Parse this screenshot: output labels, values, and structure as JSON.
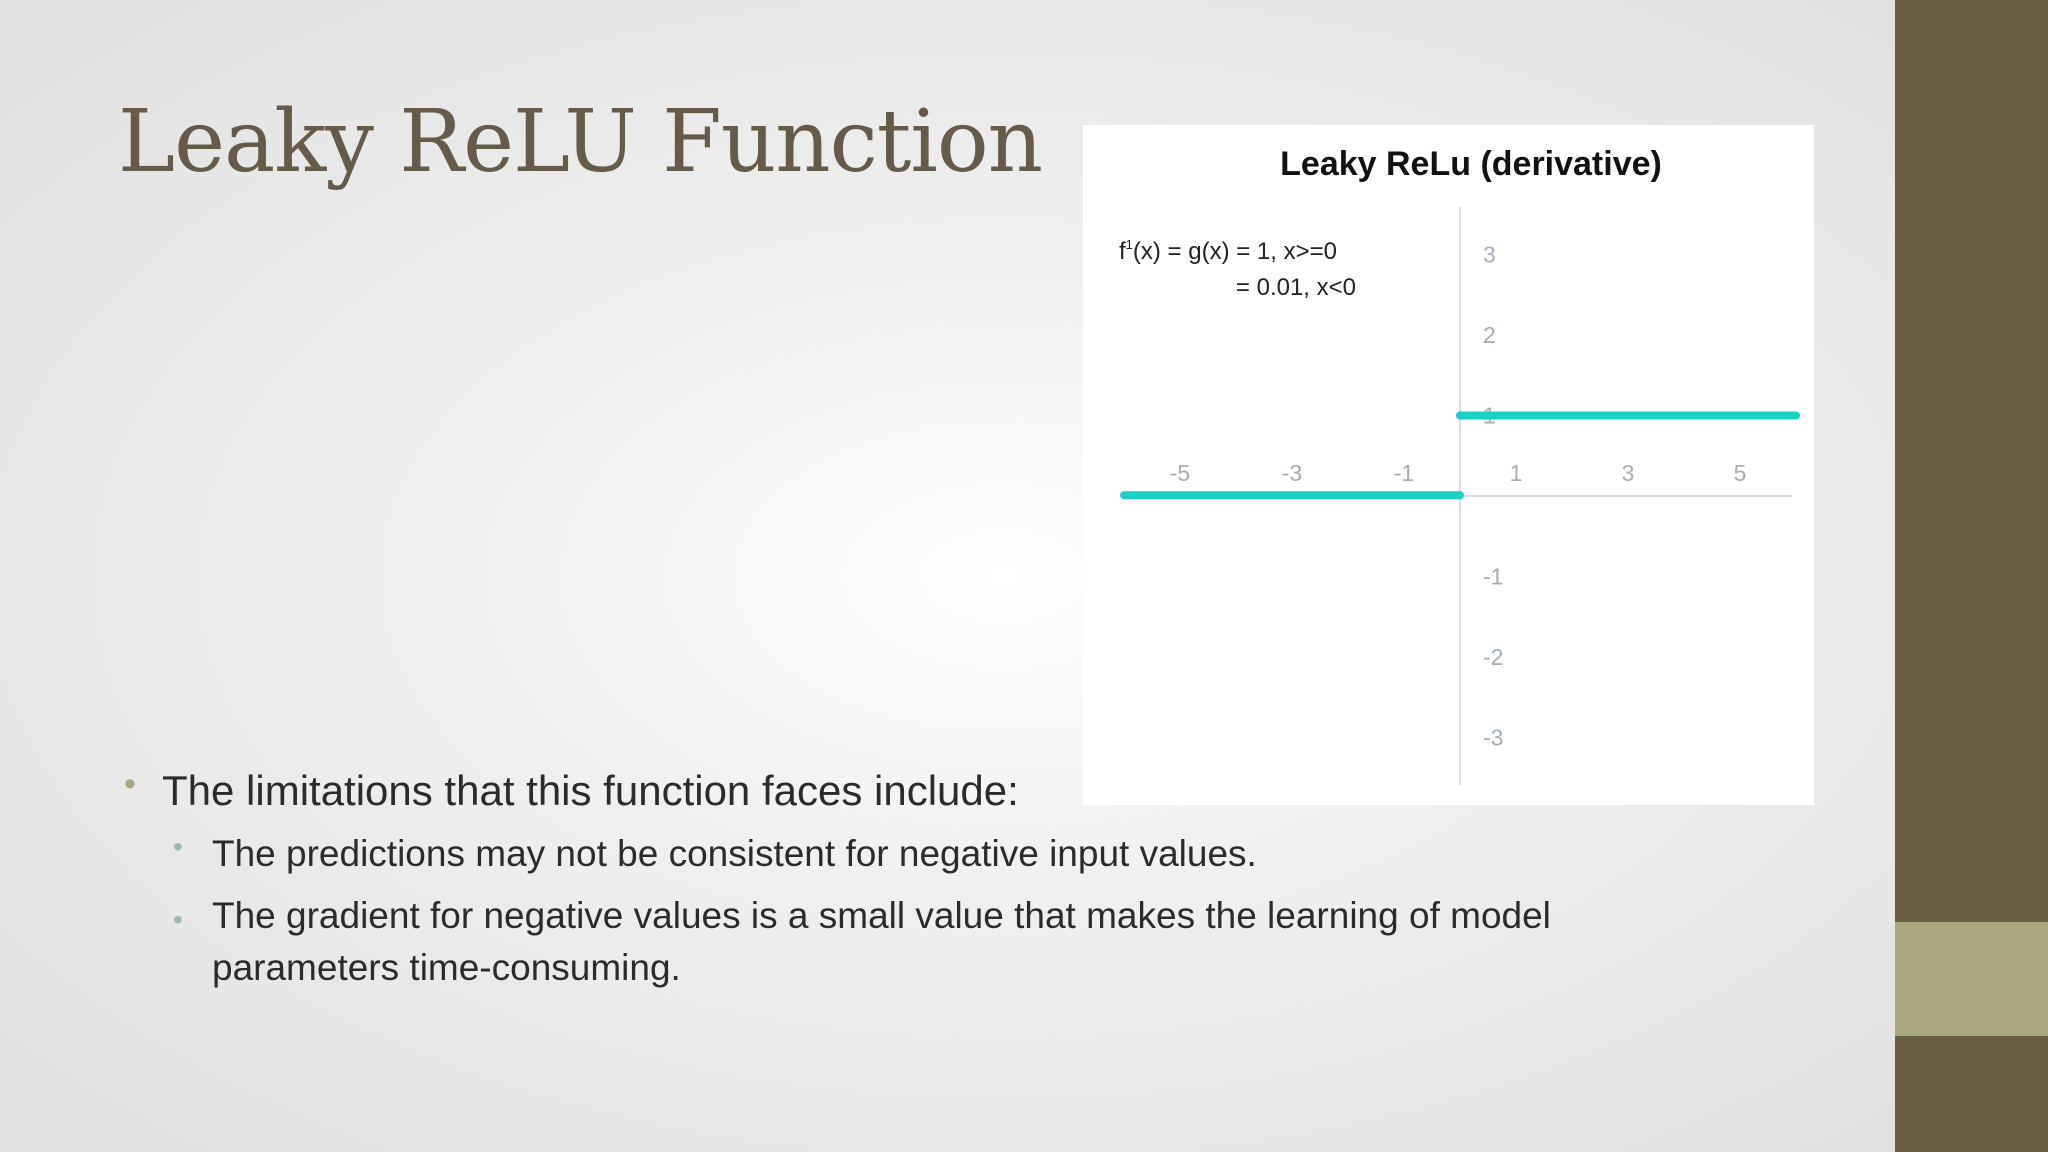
{
  "slide": {
    "title": "Leaky ReLU Function",
    "colors": {
      "title": "#655b48",
      "side_band": "#6a5e47",
      "side_accent": "#a9a77f",
      "line": "#1ccfc4",
      "tick_labels": "#a4acb8"
    },
    "bullets": [
      {
        "text": "The limitations that this function faces include:",
        "level": 1
      },
      {
        "text": "The predictions may not be consistent for negative input values.",
        "level": 2
      },
      {
        "text": "The gradient for negative values is a small value that makes the learning of model parameters time-consuming.",
        "level": 2
      }
    ]
  },
  "chart_data": {
    "type": "line",
    "title": "Leaky ReLu (derivative)",
    "formula": {
      "line1_prefix": "f",
      "line1_sup": "1",
      "line1_rest": "(x) = g(x) = 1, x>=0",
      "line2": "= 0.01, x<0"
    },
    "x_ticks": [
      "-5",
      "-3",
      "-1",
      "1",
      "3",
      "5"
    ],
    "y_ticks": [
      "3",
      "2",
      "1",
      "-1",
      "-2",
      "-3"
    ],
    "xlim": [
      -6,
      6
    ],
    "ylim": [
      -3.5,
      3.5
    ],
    "grid": false,
    "series": [
      {
        "segments": [
          {
            "x": [
              -6,
              0
            ],
            "y": [
              0.01,
              0.01
            ]
          },
          {
            "x": [
              0,
              6
            ],
            "y": [
              1,
              1
            ]
          }
        ],
        "color": "#1ccfc4"
      }
    ]
  }
}
